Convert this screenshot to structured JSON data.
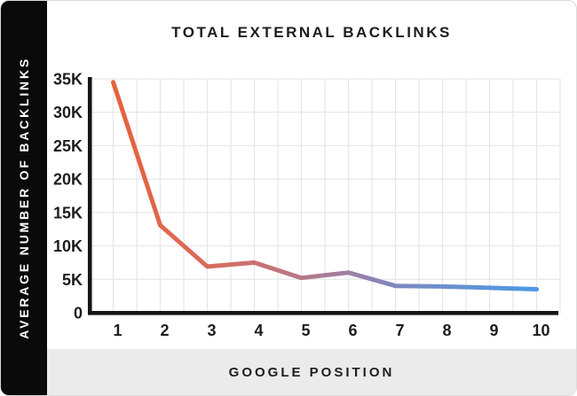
{
  "title": "TOTAL EXTERNAL BACKLINKS",
  "y_axis_label": "AVERAGE NUMBER OF BACKLINKS",
  "x_axis_label": "GOOGLE POSITION",
  "chart_data": {
    "type": "line",
    "title": "TOTAL EXTERNAL BACKLINKS",
    "xlabel": "GOOGLE POSITION",
    "ylabel": "AVERAGE NUMBER OF BACKLINKS",
    "categories": [
      "1",
      "2",
      "3",
      "4",
      "5",
      "6",
      "7",
      "8",
      "9",
      "10"
    ],
    "values": [
      34500,
      13000,
      6800,
      7400,
      5100,
      5900,
      3900,
      3800,
      3600,
      3400
    ],
    "y_ticks": [
      "35K",
      "30K",
      "25K",
      "20K",
      "15K",
      "10K",
      "5K",
      "0"
    ],
    "ylim": [
      0,
      35000
    ],
    "grid": true,
    "legend": false,
    "line_gradient": [
      {
        "offset": "0%",
        "color": "#E6613E"
      },
      {
        "offset": "15%",
        "color": "#DE6950"
      },
      {
        "offset": "33%",
        "color": "#CB7170"
      },
      {
        "offset": "44%",
        "color": "#B77787"
      },
      {
        "offset": "55%",
        "color": "#9E80A3"
      },
      {
        "offset": "66%",
        "color": "#8087BE"
      },
      {
        "offset": "82%",
        "color": "#6392D2"
      },
      {
        "offset": "100%",
        "color": "#4C98E5"
      }
    ]
  },
  "colors": {
    "sidebar_bg": "#0a0a0a",
    "sidebar_text": "#ffffff",
    "footer_bg": "#ebebeb",
    "text": "#1d1d1d",
    "grid": "#e7e7e7",
    "axis": "#151515",
    "line_start": "#E6613E",
    "line_end": "#4C98E5"
  }
}
